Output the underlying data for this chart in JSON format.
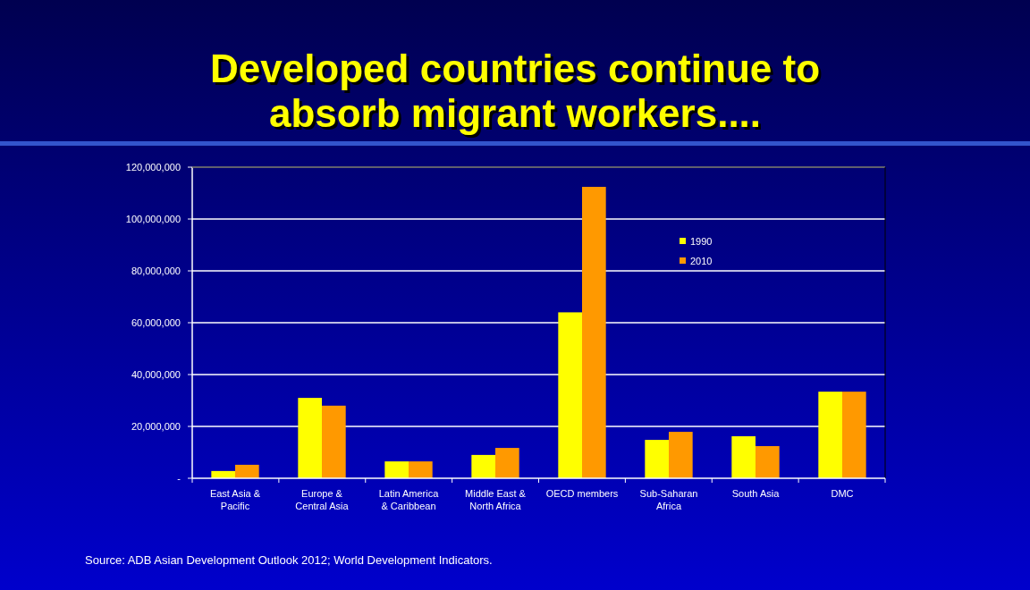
{
  "chart_data": {
    "type": "bar",
    "title": "Developed countries continue to absorb migrant workers....",
    "categories": [
      "East Asia & Pacific",
      "Europe & Central Asia",
      "Latin America & Caribbean",
      "Middle East & North Africa",
      "OECD members",
      "Sub-Saharan Africa",
      "South Asia",
      "DMC"
    ],
    "series": [
      {
        "name": "1990",
        "color": "#ffff00",
        "values": [
          2800000,
          31000000,
          6500000,
          9000000,
          64000000,
          14800000,
          16200000,
          33400000
        ]
      },
      {
        "name": "2010",
        "color": "#ff9900",
        "values": [
          5200000,
          28000000,
          6500000,
          11700000,
          112400000,
          17900000,
          12400000,
          33400000
        ]
      }
    ],
    "ylim": [
      0,
      120000000
    ],
    "yticks": [
      {
        "value": 0,
        "label": "-"
      },
      {
        "value": 20000000,
        "label": "20,000,000"
      },
      {
        "value": 40000000,
        "label": "40,000,000"
      },
      {
        "value": 60000000,
        "label": "60,000,000"
      },
      {
        "value": 80000000,
        "label": "80,000,000"
      },
      {
        "value": 100000000,
        "label": "100,000,000"
      },
      {
        "value": 120000000,
        "label": "120,000,000"
      }
    ],
    "grid": "y",
    "legend": "top right",
    "annotations": [
      "Source: ADB Asian Development Outlook 2012; World Development Indicators."
    ]
  }
}
